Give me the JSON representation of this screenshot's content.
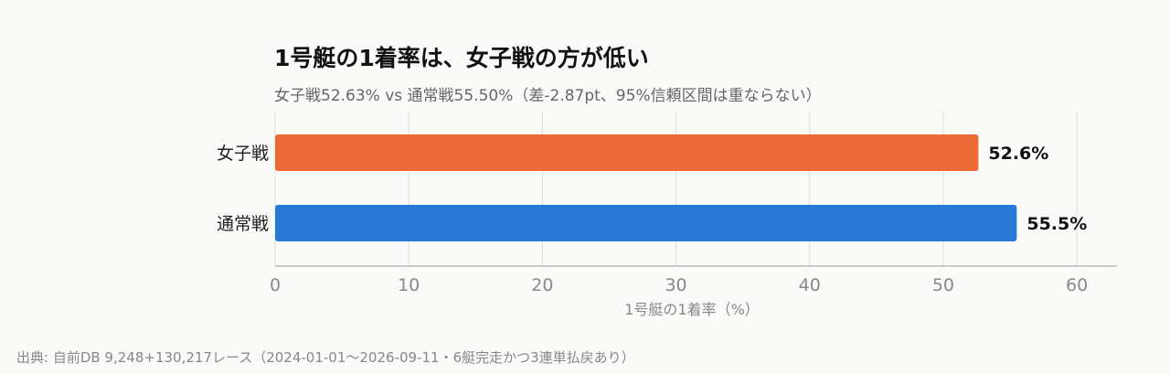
{
  "chart_data": {
    "type": "bar",
    "orientation": "horizontal",
    "title": "1号艇の1着率は、女子戦の方が低い",
    "subtitle": "女子戦52.63% vs 通常戦55.50%（差-2.87pt、95%信頼区間は重ならない）",
    "xlabel": "1号艇の1着率（%）",
    "ylabel": "",
    "categories": [
      "女子戦",
      "通常戦"
    ],
    "values": [
      52.63,
      55.5
    ],
    "value_labels": [
      "52.6%",
      "55.5%"
    ],
    "colors": [
      "#ec6a36",
      "#2979d6"
    ],
    "xlim": [
      0,
      63
    ],
    "x_ticks": [
      0,
      10,
      20,
      30,
      40,
      50,
      60
    ],
    "x_tick_labels": [
      "0",
      "10",
      "20",
      "30",
      "40",
      "50",
      "60"
    ],
    "grid": true
  },
  "source_note": "出典: 自前DB 9,248+130,217レース（2024-01-01〜2026-09-11・6艇完走かつ3連単払戻あり）"
}
